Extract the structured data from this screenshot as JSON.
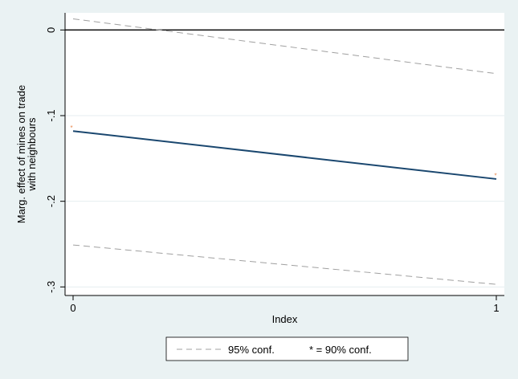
{
  "chart_data": {
    "type": "line",
    "xlabel": "Index",
    "ylabel_lines": [
      "Marg. effect of mines on trade",
      "with neighbours"
    ],
    "xlim": [
      0,
      1
    ],
    "ylim": [
      -0.31,
      0.02
    ],
    "x_ticks": [
      {
        "value": 0,
        "label": "0"
      },
      {
        "value": 1,
        "label": "1"
      }
    ],
    "y_ticks": [
      {
        "value": 0,
        "label": "0"
      },
      {
        "value": -0.1,
        "label": "-.1"
      },
      {
        "value": -0.2,
        "label": "-.2"
      },
      {
        "value": -0.3,
        "label": "-.3"
      }
    ],
    "grid": true,
    "reference_line_y": 0,
    "series": [
      {
        "role": "estimate",
        "x": [
          0,
          1
        ],
        "y": [
          -0.118,
          -0.174
        ],
        "color": "#1a476f",
        "style": "solid"
      },
      {
        "role": "upper-95",
        "x": [
          0,
          1
        ],
        "y": [
          0.013,
          -0.051
        ],
        "color": "#a0a0a0",
        "style": "dashed"
      },
      {
        "role": "lower-95",
        "x": [
          0,
          1
        ],
        "y": [
          -0.251,
          -0.297
        ],
        "color": "#a0a0a0",
        "style": "dashed"
      },
      {
        "role": "sig-90",
        "x": [
          0,
          1
        ],
        "y": [
          -0.113,
          -0.169
        ],
        "marker": "*",
        "color": "#e8864a"
      }
    ],
    "legend": {
      "placement": "bottom",
      "items": [
        {
          "label": "95% conf.",
          "style": "dashed",
          "color": "#a0a0a0"
        },
        {
          "label": "* = 90% conf.",
          "style": "none"
        }
      ]
    }
  }
}
